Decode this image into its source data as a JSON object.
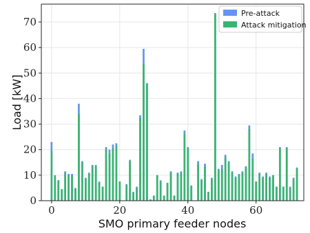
{
  "chart_data": {
    "type": "bar",
    "xlabel": "SMO primary feeder nodes",
    "ylabel": "Load [kW]",
    "xlim": [
      -3,
      74
    ],
    "ylim": [
      0,
      77
    ],
    "xticks": [
      0,
      20,
      40,
      60
    ],
    "yticks": [
      0,
      10,
      20,
      30,
      40,
      50,
      60,
      70
    ],
    "grid": true,
    "legend_position": "top-right",
    "x": [
      0,
      1,
      2,
      3,
      4,
      5,
      6,
      7,
      8,
      9,
      10,
      11,
      12,
      13,
      14,
      15,
      16,
      17,
      18,
      19,
      20,
      21,
      22,
      23,
      24,
      25,
      26,
      27,
      28,
      29,
      30,
      31,
      32,
      33,
      34,
      35,
      36,
      37,
      38,
      39,
      40,
      41,
      42,
      43,
      44,
      45,
      46,
      47,
      48,
      49,
      50,
      51,
      52,
      53,
      54,
      55,
      56,
      57,
      58,
      59,
      60,
      61,
      62,
      63,
      64,
      65,
      66,
      67,
      68,
      69,
      70,
      71,
      72
    ],
    "series": [
      {
        "name": "Pre-attack",
        "color": "#6495ed",
        "values": [
          23,
          10,
          8,
          4.5,
          11.5,
          10.5,
          10.5,
          5,
          38,
          15.5,
          9,
          11,
          14,
          14,
          7.5,
          5.5,
          21,
          20,
          22,
          22.5,
          7.5,
          0,
          6.5,
          16,
          3.5,
          5.5,
          33.5,
          59.5,
          46,
          0.5,
          2,
          10,
          8,
          2,
          7,
          11.5,
          2,
          11,
          11.5,
          27.5,
          21,
          6,
          0,
          15.5,
          8.5,
          14.5,
          3.5,
          9,
          73.5,
          12.5,
          14,
          18,
          15.5,
          11.5,
          9.5,
          10.5,
          11.5,
          13.5,
          29.5,
          18.5,
          7.5,
          11,
          9.5,
          11,
          9.5,
          10,
          5.5,
          21,
          5.5,
          21,
          5.5,
          9,
          13
        ]
      },
      {
        "name": "Attack mitigation",
        "color": "#3cb371",
        "values": [
          19.5,
          9.5,
          8,
          4.5,
          11,
          10,
          10,
          4.5,
          34,
          15,
          8.5,
          10.5,
          13.5,
          13.5,
          7,
          5.5,
          20,
          18.5,
          20.5,
          21.5,
          7.5,
          0,
          6,
          15.5,
          3,
          5,
          32.5,
          53.5,
          46,
          0.5,
          2,
          10,
          7.5,
          2,
          7,
          11,
          2,
          10.5,
          11,
          26,
          20.5,
          5.5,
          0,
          14.5,
          8,
          13.5,
          3.5,
          8.5,
          73,
          12,
          12.5,
          17,
          15,
          11,
          9,
          10,
          11,
          13,
          28,
          16.5,
          7.5,
          10.5,
          9,
          10.5,
          9,
          10,
          5.5,
          20.5,
          5.5,
          20.5,
          5,
          8.5,
          12.5
        ]
      }
    ]
  }
}
